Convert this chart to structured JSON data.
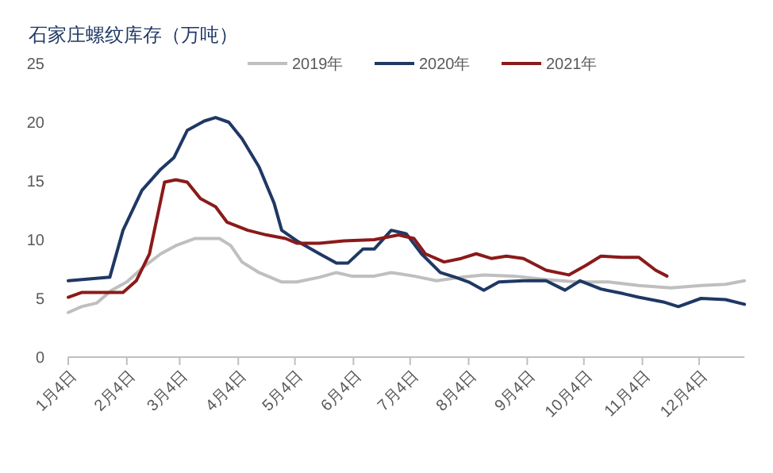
{
  "chart_data": {
    "type": "line",
    "title": "石家庄螺纹库存（万吨）",
    "xlim": [
      "--01-04",
      "--12-28"
    ],
    "xticks": [
      {
        "value": "--01-04",
        "label": "1月4日"
      },
      {
        "value": "--02-04",
        "label": "2月4日"
      },
      {
        "value": "--03-04",
        "label": "3月4日"
      },
      {
        "value": "--04-04",
        "label": "4月4日"
      },
      {
        "value": "--05-04",
        "label": "5月4日"
      },
      {
        "value": "--06-04",
        "label": "6月4日"
      },
      {
        "value": "--07-04",
        "label": "7月4日"
      },
      {
        "value": "--08-04",
        "label": "8月4日"
      },
      {
        "value": "--09-04",
        "label": "9月4日"
      },
      {
        "value": "--10-04",
        "label": "10月4日"
      },
      {
        "value": "--11-04",
        "label": "11月4日"
      },
      {
        "value": "--12-04",
        "label": "12月4日"
      }
    ],
    "ylim": [
      0,
      25
    ],
    "yticks": [
      0,
      5,
      10,
      15,
      20,
      25
    ],
    "grid": false,
    "legend": "top",
    "marker": "none",
    "line_style": "solid",
    "series": [
      {
        "name": "2019年",
        "color": "#bfbfbf",
        "x": [
          "--01-04",
          "--01-11",
          "--01-19",
          "--01-27",
          "--02-04",
          "--02-13",
          "--02-22",
          "--03-02",
          "--03-12",
          "--03-25",
          "--03-31",
          "--04-06",
          "--04-15",
          "--04-27",
          "--05-05",
          "--05-17",
          "--05-26",
          "--06-03",
          "--06-15",
          "--06-24",
          "--07-06",
          "--07-18",
          "--07-31",
          "--08-12",
          "--08-28",
          "--09-14",
          "--09-30",
          "--10-17",
          "--11-02",
          "--11-19",
          "--12-05",
          "--12-18",
          "--12-28"
        ],
        "values": [
          3.8,
          4.3,
          4.6,
          5.7,
          6.4,
          7.7,
          8.8,
          9.5,
          10.1,
          10.1,
          9.5,
          8.1,
          7.2,
          6.4,
          6.4,
          6.8,
          7.2,
          6.9,
          6.9,
          7.2,
          6.9,
          6.5,
          6.8,
          7,
          6.9,
          6.6,
          6.4,
          6.4,
          6.1,
          5.9,
          6.1,
          6.2,
          6.5
        ]
      },
      {
        "name": "2020年",
        "color": "#1f3864",
        "x": [
          "--01-04",
          "--01-26",
          "--02-02",
          "--02-12",
          "--02-22",
          "--03-01",
          "--03-08",
          "--03-17",
          "--03-23",
          "--03-30",
          "--04-06",
          "--04-15",
          "--04-23",
          "--04-27",
          "--05-05",
          "--05-17",
          "--05-26",
          "--06-01",
          "--06-09",
          "--06-15",
          "--06-24",
          "--07-02",
          "--07-10",
          "--07-20",
          "--07-28",
          "--08-04",
          "--08-12",
          "--08-20",
          "--09-02",
          "--09-14",
          "--09-24",
          "--10-02",
          "--10-13",
          "--10-25",
          "--11-02",
          "--11-15",
          "--11-23",
          "--12-05",
          "--12-18",
          "--12-28"
        ],
        "values": [
          6.5,
          6.8,
          10.8,
          14.2,
          16,
          17,
          19.3,
          20.1,
          20.4,
          20,
          18.6,
          16.2,
          13.1,
          10.8,
          9.9,
          8.8,
          8,
          8,
          9.2,
          9.2,
          10.8,
          10.5,
          8.8,
          7.2,
          6.8,
          6.4,
          5.7,
          6.4,
          6.5,
          6.5,
          5.7,
          6.5,
          5.8,
          5.4,
          5.1,
          4.7,
          4.3,
          5,
          4.9,
          4.5
        ]
      },
      {
        "name": "2021年",
        "color": "#8b1a1a",
        "x": [
          "--01-04",
          "--01-11",
          "--01-26",
          "--02-02",
          "--02-09",
          "--02-16",
          "--02-24",
          "--03-02",
          "--03-08",
          "--03-15",
          "--03-23",
          "--03-29",
          "--04-09",
          "--04-19",
          "--04-29",
          "--05-05",
          "--05-17",
          "--05-30",
          "--06-15",
          "--06-28",
          "--07-06",
          "--07-12",
          "--07-22",
          "--07-31",
          "--08-08",
          "--08-16",
          "--08-24",
          "--09-02",
          "--09-14",
          "--09-26",
          "--10-05",
          "--10-13",
          "--10-24",
          "--11-02",
          "--11-11",
          "--11-17"
        ],
        "values": [
          5.1,
          5.5,
          5.5,
          5.5,
          6.5,
          8.8,
          14.9,
          15.1,
          14.9,
          13.5,
          12.8,
          11.5,
          10.8,
          10.4,
          10.1,
          9.7,
          9.7,
          9.9,
          10,
          10.4,
          10.1,
          8.8,
          8.1,
          8.4,
          8.8,
          8.4,
          8.6,
          8.4,
          7.4,
          7,
          7.8,
          8.6,
          8.5,
          8.5,
          7.4,
          6.9
        ]
      }
    ]
  }
}
